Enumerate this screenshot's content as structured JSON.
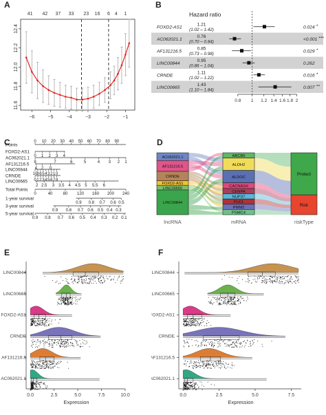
{
  "panel_labels": {
    "a": "A",
    "b": "B",
    "c": "C",
    "d": "D",
    "e": "E",
    "f": "F"
  },
  "chart_data": [
    {
      "panel": "A",
      "type": "line",
      "x": [
        -6.3,
        -6.0,
        -5.7,
        -5.4,
        -5.1,
        -4.8,
        -4.5,
        -4.2,
        -3.9,
        -3.6,
        -3.3,
        -3.0,
        -2.7,
        -2.4,
        -2.1,
        -1.8,
        -1.6,
        -1.4,
        -1.2,
        -1.0,
        -0.8
      ],
      "y": [
        12.1,
        11.95,
        11.86,
        11.8,
        11.76,
        11.73,
        11.71,
        11.69,
        11.68,
        11.66,
        11.66,
        11.67,
        11.69,
        11.72,
        11.76,
        11.81,
        11.86,
        11.93,
        12.02,
        12.13,
        12.25
      ],
      "err": [
        0.27,
        0.22,
        0.19,
        0.17,
        0.15,
        0.14,
        0.13,
        0.12,
        0.12,
        0.12,
        0.12,
        0.12,
        0.12,
        0.12,
        0.13,
        0.14,
        0.15,
        0.17,
        0.19,
        0.22,
        0.25
      ],
      "top_ticks": [
        "41",
        "42",
        "37",
        "33",
        "23",
        "16",
        "6",
        "4",
        "1"
      ],
      "top_tick_x": [
        -6.1,
        -5.3,
        -4.6,
        -3.9,
        -3.1,
        -2.5,
        -1.9,
        -1.5,
        -1.0
      ],
      "vlines": [
        -3.35,
        -1.9
      ],
      "xticks": [
        -6,
        -5,
        -4,
        -3,
        -2,
        -1
      ],
      "yticks": [
        11.6,
        11.8,
        12.0,
        12.2,
        12.4
      ],
      "xlim": [
        -6.6,
        -0.5
      ],
      "ylim": [
        11.55,
        12.5
      ],
      "line_color": "#e4201b"
    },
    {
      "panel": "B",
      "type": "forest",
      "title": "Hazard ratio",
      "rows": [
        {
          "gene": "FOXD2-AS1",
          "hr": 1.21,
          "hr_text": "1.21",
          "ci": [
            1.02,
            1.42
          ],
          "ci_text": "(1.02 – 1.42)",
          "p": "0.024",
          "sig": "*"
        },
        {
          "gene": "AC062021.1",
          "hr": 0.76,
          "hr_text": "0.76",
          "ci": [
            0.7,
            0.84
          ],
          "ci_text": "(0.70 – 0.84)",
          "p": "<0.001",
          "sig": "***"
        },
        {
          "gene": "AF131216.5",
          "hr": 0.85,
          "hr_text": "0.85",
          "ci": [
            0.73,
            0.98
          ],
          "ci_text": "(0.73 – 0.98)",
          "p": "0.029",
          "sig": "*"
        },
        {
          "gene": "LINC00844",
          "hr": 0.95,
          "hr_text": "0.95",
          "ci": [
            0.86,
            1.04
          ],
          "ci_text": "(0.86 – 1.04)",
          "p": "0.262",
          "sig": ""
        },
        {
          "gene": "CRNDE",
          "hr": 1.11,
          "hr_text": "1.11",
          "ci": [
            1.02,
            1.22
          ],
          "ci_text": "(1.02 – 1.22)",
          "p": "0.016",
          "sig": "*"
        },
        {
          "gene": "LINC00665",
          "hr": 1.43,
          "hr_text": "1.43",
          "ci": [
            1.1,
            1.84
          ],
          "ci_text": "(1.10 – 1.84)",
          "p": "0.007",
          "sig": "**"
        }
      ],
      "xticks": [
        0.8,
        1,
        1.2,
        1.4,
        1.6,
        1.8,
        2
      ],
      "xtick_labels": [
        "0.8",
        "1",
        "1.2",
        "1.4",
        "1.6",
        "1.8",
        "2"
      ],
      "xlim": [
        0.62,
        2.1
      ],
      "log_scale": true
    },
    {
      "panel": "C",
      "type": "nomogram",
      "scales": [
        {
          "label": "Points",
          "x0": 0,
          "x1": 100,
          "ticks": [
            {
              "v": 0,
              "t": "0"
            },
            {
              "v": 10,
              "t": "10"
            },
            {
              "v": 20,
              "t": "20"
            },
            {
              "v": 30,
              "t": "30"
            },
            {
              "v": 40,
              "t": "40"
            },
            {
              "v": 50,
              "t": "50"
            },
            {
              "v": 60,
              "t": "60"
            },
            {
              "v": 70,
              "t": "70"
            },
            {
              "v": 80,
              "t": "80"
            },
            {
              "v": 90,
              "t": "90"
            }
          ],
          "lab_above": true
        },
        {
          "label": "FOXD2-AS1",
          "x0": 0,
          "x1": 33,
          "ticks": [
            {
              "v": 0,
              "t": "0"
            },
            {
              "v": 8,
              "t": "1"
            },
            {
              "v": 16,
              "t": "2"
            },
            {
              "v": 24,
              "t": "3"
            },
            {
              "v": 32,
              "t": "4"
            }
          ],
          "lab_above": false
        },
        {
          "label": "AC062021.1",
          "x0": 0,
          "x1": 100,
          "ticks": [
            {
              "v": 0,
              "t": "8"
            },
            {
              "v": 22,
              "t": "7"
            },
            {
              "v": 40,
              "t": "6"
            },
            {
              "v": 55,
              "t": "5"
            },
            {
              "v": 70,
              "t": "4"
            },
            {
              "v": 82,
              "t": "3"
            },
            {
              "v": 92,
              "t": "2"
            },
            {
              "v": 100,
              "t": "1"
            }
          ],
          "lab_above": false
        },
        {
          "label": "AF131216.5",
          "x0": 0,
          "x1": 44,
          "ticks": [
            {
              "v": 1,
              "t": "4"
            },
            {
              "v": 8,
              "t": "2"
            },
            {
              "v": 17,
              "t": "0"
            }
          ],
          "lab_above": false
        },
        {
          "label": "LINC00844",
          "x0": 0,
          "x1": 28,
          "ticks": [
            {
              "v": 0,
              "t": "10"
            },
            {
              "v": 3,
              "t": "8"
            },
            {
              "v": 6,
              "t": "6"
            },
            {
              "v": 9,
              "t": "5"
            },
            {
              "v": 12,
              "t": "4"
            },
            {
              "v": 15,
              "t": "3"
            },
            {
              "v": 18,
              "t": "2"
            },
            {
              "v": 21,
              "t": "1"
            },
            {
              "v": 24,
              "t": "0"
            }
          ],
          "lab_above": false
        },
        {
          "label": "CRNDE",
          "x0": 0,
          "x1": 28,
          "ticks": [
            {
              "v": 0,
              "t": "0"
            },
            {
              "v": 3,
              "t": "1"
            },
            {
              "v": 6,
              "t": "2"
            },
            {
              "v": 9,
              "t": "3"
            },
            {
              "v": 12,
              "t": "4"
            },
            {
              "v": 15,
              "t": "5"
            },
            {
              "v": 18,
              "t": "6"
            },
            {
              "v": 21,
              "t": "7"
            },
            {
              "v": 24,
              "t": "8"
            }
          ],
          "lab_above": false
        },
        {
          "label": "LINC00665",
          "x0": 0,
          "x1": 92,
          "ticks": [
            {
              "v": 2,
              "t": "2"
            },
            {
              "v": 10,
              "t": "2.5"
            },
            {
              "v": 20,
              "t": "3"
            },
            {
              "v": 29,
              "t": "3.5"
            },
            {
              "v": 38,
              "t": "4"
            },
            {
              "v": 47,
              "t": "4.5"
            },
            {
              "v": 56,
              "t": "5"
            },
            {
              "v": 66,
              "t": "5.5"
            },
            {
              "v": 76,
              "t": "6"
            }
          ],
          "lab_above": false
        },
        {
          "label": "Total Points",
          "x0": 0,
          "x1": 100,
          "ticks": [
            {
              "v": 0,
              "t": "0"
            },
            {
              "v": 16.7,
              "t": "40"
            },
            {
              "v": 33.3,
              "t": "80"
            },
            {
              "v": 50,
              "t": "120"
            },
            {
              "v": 66.7,
              "t": "160"
            },
            {
              "v": 83.3,
              "t": "200"
            },
            {
              "v": 100,
              "t": "240"
            }
          ],
          "lab_above": false
        },
        {
          "label": "1-year survival",
          "x0": 45,
          "x1": 95,
          "ticks": [
            {
              "v": 48,
              "t": "0.9"
            },
            {
              "v": 62,
              "t": "0.8"
            },
            {
              "v": 74,
              "t": "0.7"
            },
            {
              "v": 86,
              "t": "0.6"
            },
            {
              "v": 95,
              "t": "0.5"
            }
          ],
          "lab_above": false
        },
        {
          "label": "3-year survival",
          "x0": 20,
          "x1": 95,
          "ticks": [
            {
              "v": 22,
              "t": "0.9"
            },
            {
              "v": 37,
              "t": "0.8"
            },
            {
              "v": 50,
              "t": "0.7"
            },
            {
              "v": 61,
              "t": "0.6"
            },
            {
              "v": 72,
              "t": "0.5"
            },
            {
              "v": 82,
              "t": "0.4"
            },
            {
              "v": 92,
              "t": "0.3"
            }
          ],
          "lab_above": false
        },
        {
          "label": "5-year survival",
          "x0": 0,
          "x1": 100,
          "ticks": [
            {
              "v": 0,
              "t": "0.9"
            },
            {
              "v": 14,
              "t": "0.8"
            },
            {
              "v": 28,
              "t": "0.7"
            },
            {
              "v": 40,
              "t": "0.6"
            },
            {
              "v": 52,
              "t": "0.5"
            },
            {
              "v": 64,
              "t": "0.4"
            },
            {
              "v": 76,
              "t": "0.3"
            },
            {
              "v": 88,
              "t": "0.2"
            },
            {
              "v": 98,
              "t": "0.1"
            }
          ],
          "lab_above": false
        }
      ]
    },
    {
      "panel": "D",
      "type": "sankey",
      "axis_labels": [
        "lncRNA",
        "mRNA",
        "riskType"
      ],
      "lncrna": [
        {
          "name": "AC062021.1",
          "color": "#6d86c5",
          "weight": 1
        },
        {
          "name": "AF131216.5",
          "color": "#e2548a",
          "weight": 1.4
        },
        {
          "name": "CRNDE",
          "color": "#b5835a",
          "weight": 1.2
        },
        {
          "name": "FOXD2-AS1",
          "color": "#f2c12e",
          "weight": 0.6
        },
        {
          "name": "LINC00665",
          "color": "#7cc06a",
          "weight": 0.6
        },
        {
          "name": "LINC00844",
          "color": "#3aa54c",
          "weight": 3.2
        }
      ],
      "mrna": [
        {
          "name": "ABCB6",
          "color": "#5bb86a",
          "weight": 0.55
        },
        {
          "name": "ALDH2",
          "color": "#f0dc5a",
          "weight": 1.3
        },
        {
          "name": "ALDOC",
          "color": "#5b6fb3",
          "weight": 1.3
        },
        {
          "name": "CACNA1H",
          "color": "#e2487a",
          "weight": 0.6
        },
        {
          "name": "CENPA",
          "color": "#a63e5c",
          "weight": 0.55
        },
        {
          "name": "NUP37",
          "color": "#5bb6d8",
          "weight": 0.55
        },
        {
          "name": "PLK1",
          "color": "#b03236",
          "weight": 0.55
        },
        {
          "name": "PMM2",
          "color": "#6b6fb8",
          "weight": 0.55
        },
        {
          "name": "PSMC4",
          "color": "#6fc08a",
          "weight": 0.55
        }
      ],
      "risk": [
        {
          "name": "Protect",
          "color": "#3ea84a",
          "weight": 5.3
        },
        {
          "name": "Risk",
          "color": "#e8452e",
          "weight": 2.5
        }
      ],
      "links_l": [
        [
          0,
          1
        ],
        [
          0,
          2
        ],
        [
          1,
          1
        ],
        [
          1,
          2
        ],
        [
          1,
          0
        ],
        [
          2,
          3
        ],
        [
          2,
          4
        ],
        [
          2,
          5
        ],
        [
          2,
          6
        ],
        [
          3,
          3
        ],
        [
          3,
          4
        ],
        [
          3,
          7
        ],
        [
          4,
          5
        ],
        [
          4,
          6
        ],
        [
          4,
          8
        ],
        [
          5,
          0
        ],
        [
          5,
          1
        ],
        [
          5,
          2
        ],
        [
          5,
          7
        ],
        [
          5,
          8
        ]
      ],
      "links_r": [
        [
          0,
          0
        ],
        [
          1,
          0
        ],
        [
          2,
          0
        ],
        [
          3,
          1
        ],
        [
          4,
          1
        ],
        [
          5,
          1
        ],
        [
          6,
          1
        ],
        [
          7,
          1
        ],
        [
          8,
          1
        ]
      ]
    },
    {
      "panel": "E",
      "type": "raincloud",
      "xlabel": "Expression",
      "xticks": [
        0,
        2.5,
        5,
        7.5,
        10
      ],
      "xtick_labels": [
        "0.0",
        "2.5",
        "5.0",
        "7.5",
        "10.0"
      ],
      "xlim": [
        -0.3,
        10
      ],
      "groups": [
        {
          "name": "LINC00844",
          "color": "#c0873e",
          "min": 1.3,
          "q1": 4.5,
          "med": 5.8,
          "q3": 7.2,
          "max": 9.8,
          "mode": 6.6,
          "sd": 1.7
        },
        {
          "name": "LINC00665",
          "color": "#5ba838",
          "min": 2.7,
          "q1": 3.3,
          "med": 3.8,
          "q3": 4.2,
          "max": 5.4,
          "mode": 3.8,
          "sd": 0.5
        },
        {
          "name": "FOXD2-AS1",
          "color": "#d6257a",
          "min": 0.0,
          "q1": 0.4,
          "med": 0.9,
          "q3": 1.6,
          "max": 4.4,
          "mode": 0.6,
          "sd": 0.8
        },
        {
          "name": "CRNDE",
          "color": "#6a64b4",
          "min": 0.0,
          "q1": 1.9,
          "med": 3.2,
          "q3": 4.4,
          "max": 7.4,
          "mode": 3.0,
          "sd": 1.6
        },
        {
          "name": "AF131216.5",
          "color": "#d96f1e",
          "min": 0.0,
          "q1": 1.0,
          "med": 1.6,
          "q3": 2.5,
          "max": 5.3,
          "mode": 1.3,
          "sd": 1.0
        },
        {
          "name": "AC062021.1",
          "color": "#1b9e77",
          "min": 0.0,
          "q1": 0.1,
          "med": 0.3,
          "q3": 0.7,
          "max": 7.3,
          "mode": 0.2,
          "sd": 0.6
        }
      ]
    },
    {
      "panel": "F",
      "type": "raincloud",
      "xlabel": "Expression",
      "xticks": [
        0,
        2.5,
        5,
        7.5
      ],
      "xtick_labels": [
        "0.0",
        "2.5",
        "5.0",
        "7.5"
      ],
      "xlim": [
        -0.2,
        8.2
      ],
      "groups": [
        {
          "name": "LINC00844",
          "color": "#c0873e",
          "min": 0.1,
          "q1": 4.5,
          "med": 5.5,
          "q3": 6.4,
          "max": 8.0,
          "mode": 6.2,
          "sd": 1.4
        },
        {
          "name": "LINC00665",
          "color": "#5ba838",
          "min": 1.7,
          "q1": 2.6,
          "med": 3.1,
          "q3": 3.6,
          "max": 5.6,
          "mode": 3.1,
          "sd": 0.6
        },
        {
          "name": "FOXD2-AS1",
          "color": "#d6257a",
          "min": 0.0,
          "q1": 0.3,
          "med": 0.7,
          "q3": 1.3,
          "max": 3.3,
          "mode": 0.5,
          "sd": 0.6
        },
        {
          "name": "CRNDE",
          "color": "#6a64b4",
          "min": 0.0,
          "q1": 1.4,
          "med": 2.6,
          "q3": 3.9,
          "max": 7.1,
          "mode": 2.5,
          "sd": 1.6
        },
        {
          "name": "AF131216.5",
          "color": "#d96f1e",
          "min": 0.0,
          "q1": 1.2,
          "med": 1.9,
          "q3": 2.6,
          "max": 4.8,
          "mode": 1.8,
          "sd": 0.9
        },
        {
          "name": "AC062021.1",
          "color": "#1b9e77",
          "min": 0.0,
          "q1": 0.1,
          "med": 0.3,
          "q3": 0.7,
          "max": 5.8,
          "mode": 0.2,
          "sd": 0.6
        }
      ]
    }
  ]
}
